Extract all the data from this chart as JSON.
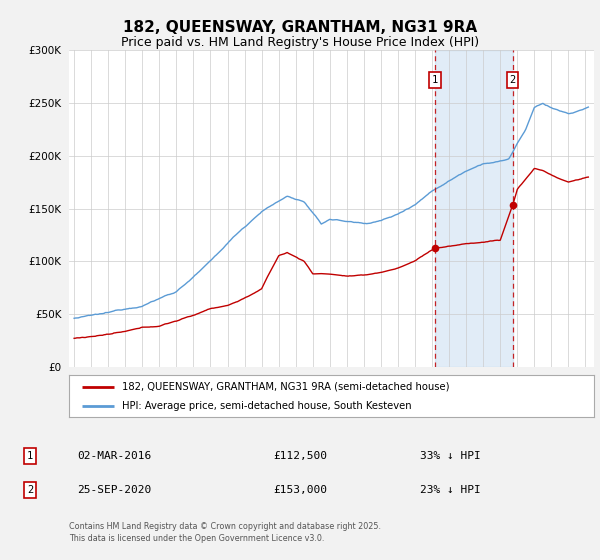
{
  "title": "182, QUEENSWAY, GRANTHAM, NG31 9RA",
  "subtitle": "Price paid vs. HM Land Registry's House Price Index (HPI)",
  "title_fontsize": 11,
  "subtitle_fontsize": 9,
  "legend_line1": "182, QUEENSWAY, GRANTHAM, NG31 9RA (semi-detached house)",
  "legend_line2": "HPI: Average price, semi-detached house, South Kesteven",
  "hpi_color": "#5b9bd5",
  "price_color": "#c00000",
  "sale1_date": "02-MAR-2016",
  "sale1_price": 112500,
  "sale1_label": "33% ↓ HPI",
  "sale2_date": "25-SEP-2020",
  "sale2_price": 153000,
  "sale2_label": "23% ↓ HPI",
  "sale1_year": 2016.17,
  "sale2_year": 2020.73,
  "ylim": [
    0,
    300000
  ],
  "yticks": [
    0,
    50000,
    100000,
    150000,
    200000,
    250000,
    300000
  ],
  "footer": "Contains HM Land Registry data © Crown copyright and database right 2025.\nThis data is licensed under the Open Government Licence v3.0.",
  "background_color": "#f2f2f2",
  "plot_background": "#ffffff",
  "shade_color": "#ddeeff"
}
